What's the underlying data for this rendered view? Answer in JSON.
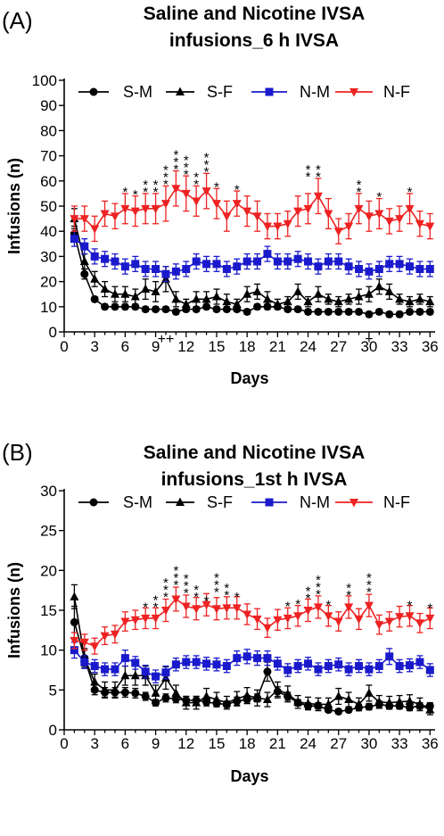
{
  "chart_data": [
    {
      "type": "line",
      "panel_label": "(A)",
      "title_lines": [
        "Saline and Nicotine IVSA",
        "infusions_6 h IVSA"
      ],
      "xlabel": "Days",
      "ylabel": "Infusions (n)",
      "xlim": [
        0,
        36.5
      ],
      "ylim": [
        0,
        100
      ],
      "xticks": [
        0,
        3,
        6,
        9,
        12,
        15,
        18,
        21,
        24,
        27,
        30,
        33,
        36
      ],
      "yticks": [
        0,
        10,
        20,
        30,
        40,
        50,
        60,
        70,
        80,
        90,
        100
      ],
      "legend_position": "top",
      "series": [
        {
          "name": "S-M",
          "color": "#000000",
          "marker": "circle",
          "x": [
            1,
            2,
            3,
            4,
            5,
            6,
            7,
            8,
            9,
            10,
            11,
            12,
            13,
            14,
            15,
            16,
            17,
            18,
            19,
            20,
            21,
            22,
            23,
            24,
            25,
            26,
            27,
            28,
            29,
            30,
            31,
            32,
            33,
            34,
            35,
            36
          ],
          "y": [
            39,
            23,
            13,
            10,
            10,
            10,
            10,
            9,
            9,
            9,
            8,
            9,
            9,
            10,
            9,
            9,
            9,
            8,
            10,
            10,
            10,
            9,
            9,
            8,
            8,
            8,
            8,
            8,
            8,
            7,
            8,
            7,
            7,
            8,
            8,
            8
          ],
          "err": [
            3,
            2,
            1,
            1,
            1,
            1,
            1,
            1,
            1,
            1,
            1,
            1,
            1,
            1,
            1,
            1,
            1,
            1,
            1,
            1,
            1,
            1,
            1,
            1,
            1,
            1,
            1,
            1,
            1,
            1,
            1,
            1,
            1,
            1,
            1,
            1
          ]
        },
        {
          "name": "S-F",
          "color": "#000000",
          "marker": "triangle-up",
          "x": [
            1,
            2,
            3,
            4,
            5,
            6,
            7,
            8,
            9,
            10,
            11,
            12,
            13,
            14,
            15,
            16,
            17,
            18,
            19,
            20,
            21,
            22,
            23,
            24,
            25,
            26,
            27,
            28,
            29,
            30,
            31,
            32,
            33,
            34,
            35,
            36
          ],
          "y": [
            45,
            28,
            21,
            17,
            15,
            15,
            14,
            17,
            16,
            21,
            13,
            11,
            13,
            13,
            14,
            12,
            11,
            15,
            16,
            13,
            11,
            12,
            16,
            12,
            15,
            13,
            12,
            13,
            14,
            15,
            18,
            16,
            13,
            12,
            13,
            12
          ],
          "err": [
            4,
            3,
            3,
            3,
            3,
            3,
            3,
            4,
            4,
            5,
            3,
            2,
            3,
            3,
            3,
            3,
            2,
            3,
            3,
            3,
            2,
            2,
            3,
            2,
            3,
            2,
            2,
            2,
            3,
            3,
            3,
            3,
            2,
            2,
            2,
            2
          ]
        },
        {
          "name": "N-M",
          "color": "#1a1acc",
          "marker": "square",
          "x": [
            1,
            2,
            3,
            4,
            5,
            6,
            7,
            8,
            9,
            10,
            11,
            12,
            13,
            14,
            15,
            16,
            17,
            18,
            19,
            20,
            21,
            22,
            23,
            24,
            25,
            26,
            27,
            28,
            29,
            30,
            31,
            32,
            33,
            34,
            35,
            36
          ],
          "y": [
            37,
            34,
            30,
            29,
            28,
            26,
            27,
            25,
            25,
            23,
            24,
            25,
            28,
            27,
            27,
            25,
            26,
            28,
            28,
            31,
            28,
            28,
            29,
            28,
            26,
            28,
            28,
            26,
            25,
            24,
            25,
            27,
            27,
            26,
            25,
            25
          ],
          "err": [
            3,
            3,
            3,
            3,
            3,
            3,
            3,
            3,
            3,
            3,
            3,
            3,
            3,
            3,
            3,
            3,
            3,
            3,
            3,
            3,
            3,
            3,
            3,
            3,
            3,
            3,
            3,
            3,
            3,
            3,
            3,
            3,
            3,
            3,
            3,
            3
          ]
        },
        {
          "name": "N-F",
          "color": "#ee2222",
          "marker": "triangle-down",
          "x": [
            1,
            2,
            3,
            4,
            5,
            6,
            7,
            8,
            9,
            10,
            11,
            12,
            13,
            14,
            15,
            16,
            17,
            18,
            19,
            20,
            21,
            22,
            23,
            24,
            25,
            26,
            27,
            28,
            29,
            30,
            31,
            32,
            33,
            34,
            35,
            36
          ],
          "y": [
            45,
            45,
            41,
            47,
            46,
            49,
            48,
            49,
            49,
            51,
            57,
            55,
            52,
            56,
            51,
            46,
            51,
            48,
            46,
            42,
            42,
            43,
            48,
            49,
            54,
            47,
            40,
            42,
            49,
            46,
            47,
            44,
            45,
            49,
            43,
            42
          ],
          "err": [
            5,
            5,
            5,
            5,
            5,
            6,
            6,
            6,
            6,
            7,
            7,
            7,
            6,
            7,
            6,
            6,
            5,
            6,
            6,
            5,
            5,
            5,
            6,
            6,
            7,
            6,
            5,
            5,
            6,
            6,
            6,
            5,
            5,
            6,
            5,
            5
          ]
        }
      ],
      "annotations": [
        {
          "x": 6,
          "y": 56,
          "text": "*"
        },
        {
          "x": 7,
          "y": 55,
          "text": "*"
        },
        {
          "x": 8,
          "y": 56,
          "text": "**"
        },
        {
          "x": 9,
          "y": 56,
          "text": "**"
        },
        {
          "x": 10,
          "y": 59,
          "text": "***"
        },
        {
          "x": 11,
          "y": 65,
          "text": "***"
        },
        {
          "x": 12,
          "y": 63,
          "text": "***"
        },
        {
          "x": 13,
          "y": 59,
          "text": "**"
        },
        {
          "x": 14,
          "y": 64,
          "text": "***"
        },
        {
          "x": 15,
          "y": 58,
          "text": "*"
        },
        {
          "x": 17,
          "y": 57,
          "text": "*"
        },
        {
          "x": 24,
          "y": 62,
          "text": "**"
        },
        {
          "x": 25,
          "y": 62,
          "text": "**"
        },
        {
          "x": 29,
          "y": 56,
          "text": "**"
        },
        {
          "x": 31,
          "y": 54,
          "text": "*"
        },
        {
          "x": 34,
          "y": 56,
          "text": "*"
        },
        {
          "x": 10,
          "y": 0,
          "text": "++"
        },
        {
          "x": 30,
          "y": 1,
          "text": "+"
        }
      ]
    },
    {
      "type": "line",
      "panel_label": "(B)",
      "title_lines": [
        "Saline and Nicotine IVSA",
        "infusions_1st h IVSA"
      ],
      "xlabel": "Days",
      "ylabel": "Infusions (n)",
      "xlim": [
        0,
        36.5
      ],
      "ylim": [
        0,
        30
      ],
      "xticks": [
        0,
        3,
        6,
        9,
        12,
        15,
        18,
        21,
        24,
        27,
        30,
        33,
        36
      ],
      "yticks": [
        0,
        5,
        10,
        15,
        20,
        25,
        30
      ],
      "legend_position": "top",
      "series": [
        {
          "name": "S-M",
          "color": "#000000",
          "marker": "circle",
          "x": [
            1,
            2,
            3,
            4,
            5,
            6,
            7,
            8,
            9,
            10,
            11,
            12,
            13,
            14,
            15,
            16,
            17,
            18,
            19,
            20,
            21,
            22,
            23,
            24,
            25,
            26,
            27,
            28,
            29,
            30,
            31,
            32,
            33,
            34,
            35,
            36
          ],
          "y": [
            13.5,
            9,
            5,
            4.7,
            4.7,
            4.7,
            4.6,
            4.2,
            3.4,
            4,
            3.9,
            3.7,
            3.7,
            3.5,
            3.3,
            3.2,
            3.6,
            3.8,
            4,
            7.3,
            4.8,
            4.2,
            3.4,
            3,
            3,
            2.5,
            2.3,
            2.5,
            2.8,
            2.9,
            3.2,
            3,
            3,
            2.8,
            3,
            3
          ],
          "err": [
            2,
            1,
            0.6,
            0.6,
            0.6,
            0.6,
            0.6,
            0.5,
            0.4,
            0.5,
            0.5,
            0.5,
            0.5,
            0.5,
            0.4,
            0.4,
            0.5,
            0.5,
            0.5,
            1.2,
            0.6,
            0.5,
            0.4,
            0.4,
            0.4,
            0.3,
            0.3,
            0.3,
            0.4,
            0.4,
            0.4,
            0.4,
            0.4,
            0.4,
            0.4,
            0.4
          ]
        },
        {
          "name": "S-F",
          "color": "#000000",
          "marker": "triangle-up",
          "x": [
            1,
            2,
            3,
            4,
            5,
            6,
            7,
            8,
            9,
            10,
            11,
            12,
            13,
            14,
            15,
            16,
            17,
            18,
            19,
            20,
            21,
            22,
            23,
            24,
            25,
            26,
            27,
            28,
            29,
            30,
            31,
            32,
            33,
            34,
            35,
            36
          ],
          "y": [
            16.7,
            9,
            6,
            5,
            5,
            6.8,
            6.8,
            6.8,
            4.6,
            6.5,
            4.6,
            3.4,
            3.4,
            4.2,
            3.8,
            3.4,
            3.9,
            4.3,
            4,
            3.8,
            5,
            4.5,
            3.5,
            3.3,
            3.2,
            3.2,
            4.2,
            3.8,
            3.2,
            4.6,
            3.5,
            3.4,
            3.5,
            3.6,
            3.2,
            2.5
          ],
          "err": [
            1.5,
            1.2,
            1,
            1,
            1,
            1.2,
            1.2,
            1.2,
            1,
            1.4,
            1,
            0.8,
            0.8,
            1,
            0.9,
            0.8,
            0.9,
            1,
            1,
            0.9,
            1,
            1,
            0.8,
            0.8,
            0.8,
            0.8,
            1,
            0.9,
            0.8,
            1,
            0.8,
            0.8,
            0.8,
            0.8,
            0.8,
            0.6
          ]
        },
        {
          "name": "N-M",
          "color": "#1a1acc",
          "marker": "square",
          "x": [
            1,
            2,
            3,
            4,
            5,
            6,
            7,
            8,
            9,
            10,
            11,
            12,
            13,
            14,
            15,
            16,
            17,
            18,
            19,
            20,
            21,
            22,
            23,
            24,
            25,
            26,
            27,
            28,
            29,
            30,
            31,
            32,
            33,
            34,
            35,
            36
          ],
          "y": [
            10,
            8.5,
            8,
            7.6,
            7.6,
            9,
            8.4,
            7.3,
            6.7,
            7.2,
            8.2,
            8.5,
            8.5,
            8.3,
            8.2,
            8,
            9,
            9.2,
            9,
            9,
            8.3,
            7.5,
            8,
            8.3,
            7.6,
            8,
            8.2,
            7.6,
            8,
            7.6,
            8,
            9.2,
            8,
            8.1,
            8.5,
            7.5
          ],
          "err": [
            1,
            0.8,
            0.8,
            0.8,
            0.8,
            1,
            0.8,
            0.8,
            0.8,
            0.8,
            0.8,
            0.8,
            0.8,
            0.8,
            0.8,
            0.8,
            0.9,
            0.9,
            0.9,
            0.9,
            0.8,
            0.8,
            0.8,
            0.8,
            0.8,
            0.8,
            0.8,
            0.8,
            0.8,
            0.8,
            0.8,
            1,
            0.8,
            0.8,
            0.8,
            0.8
          ]
        },
        {
          "name": "N-F",
          "color": "#ee2222",
          "marker": "triangle-down",
          "x": [
            1,
            2,
            3,
            4,
            5,
            6,
            7,
            8,
            9,
            10,
            11,
            12,
            13,
            14,
            15,
            16,
            17,
            18,
            19,
            20,
            21,
            22,
            23,
            24,
            25,
            26,
            27,
            28,
            29,
            30,
            31,
            32,
            33,
            34,
            35,
            36
          ],
          "y": [
            11.2,
            11,
            10.5,
            11.8,
            12,
            13.6,
            13.8,
            14,
            14,
            15,
            16.4,
            15.5,
            15.2,
            15.7,
            15.2,
            15.3,
            15.3,
            14.5,
            13.9,
            12.8,
            13.8,
            14,
            14.3,
            15,
            15.4,
            14.3,
            13.6,
            15.4,
            13.9,
            15.6,
            13.2,
            13.6,
            14.2,
            14.3,
            13.4,
            14
          ],
          "err": [
            1,
            1,
            1,
            1.1,
            1.1,
            1.2,
            1.2,
            1.3,
            1.3,
            1.4,
            1.5,
            1.4,
            1.4,
            1.4,
            1.4,
            1.4,
            1.4,
            1.3,
            1.3,
            1.2,
            1.3,
            1.3,
            1.3,
            1.4,
            1.4,
            1.3,
            1.2,
            1.4,
            1.3,
            1.4,
            1.2,
            1.2,
            1.3,
            1.3,
            1.2,
            1.3
          ]
        }
      ],
      "annotations": [
        {
          "x": 8,
          "y": 15.5,
          "text": "*"
        },
        {
          "x": 9,
          "y": 15.5,
          "text": "**"
        },
        {
          "x": 10,
          "y": 16.8,
          "text": "***"
        },
        {
          "x": 11,
          "y": 18.3,
          "text": "***"
        },
        {
          "x": 12,
          "y": 17.3,
          "text": "***"
        },
        {
          "x": 13,
          "y": 16.8,
          "text": "**"
        },
        {
          "x": 14,
          "y": 16.3,
          "text": "*"
        },
        {
          "x": 15,
          "y": 17.4,
          "text": "***"
        },
        {
          "x": 16,
          "y": 17,
          "text": "**"
        },
        {
          "x": 17,
          "y": 16.8,
          "text": "*"
        },
        {
          "x": 22,
          "y": 15.6,
          "text": "*"
        },
        {
          "x": 23,
          "y": 15.9,
          "text": "*"
        },
        {
          "x": 24,
          "y": 16.6,
          "text": "**"
        },
        {
          "x": 25,
          "y": 17.1,
          "text": "***"
        },
        {
          "x": 26,
          "y": 15.8,
          "text": "*"
        },
        {
          "x": 28,
          "y": 17,
          "text": "**"
        },
        {
          "x": 30,
          "y": 17.4,
          "text": "***"
        },
        {
          "x": 34,
          "y": 15.7,
          "text": "*"
        },
        {
          "x": 36,
          "y": 15.4,
          "text": "*"
        }
      ]
    }
  ]
}
